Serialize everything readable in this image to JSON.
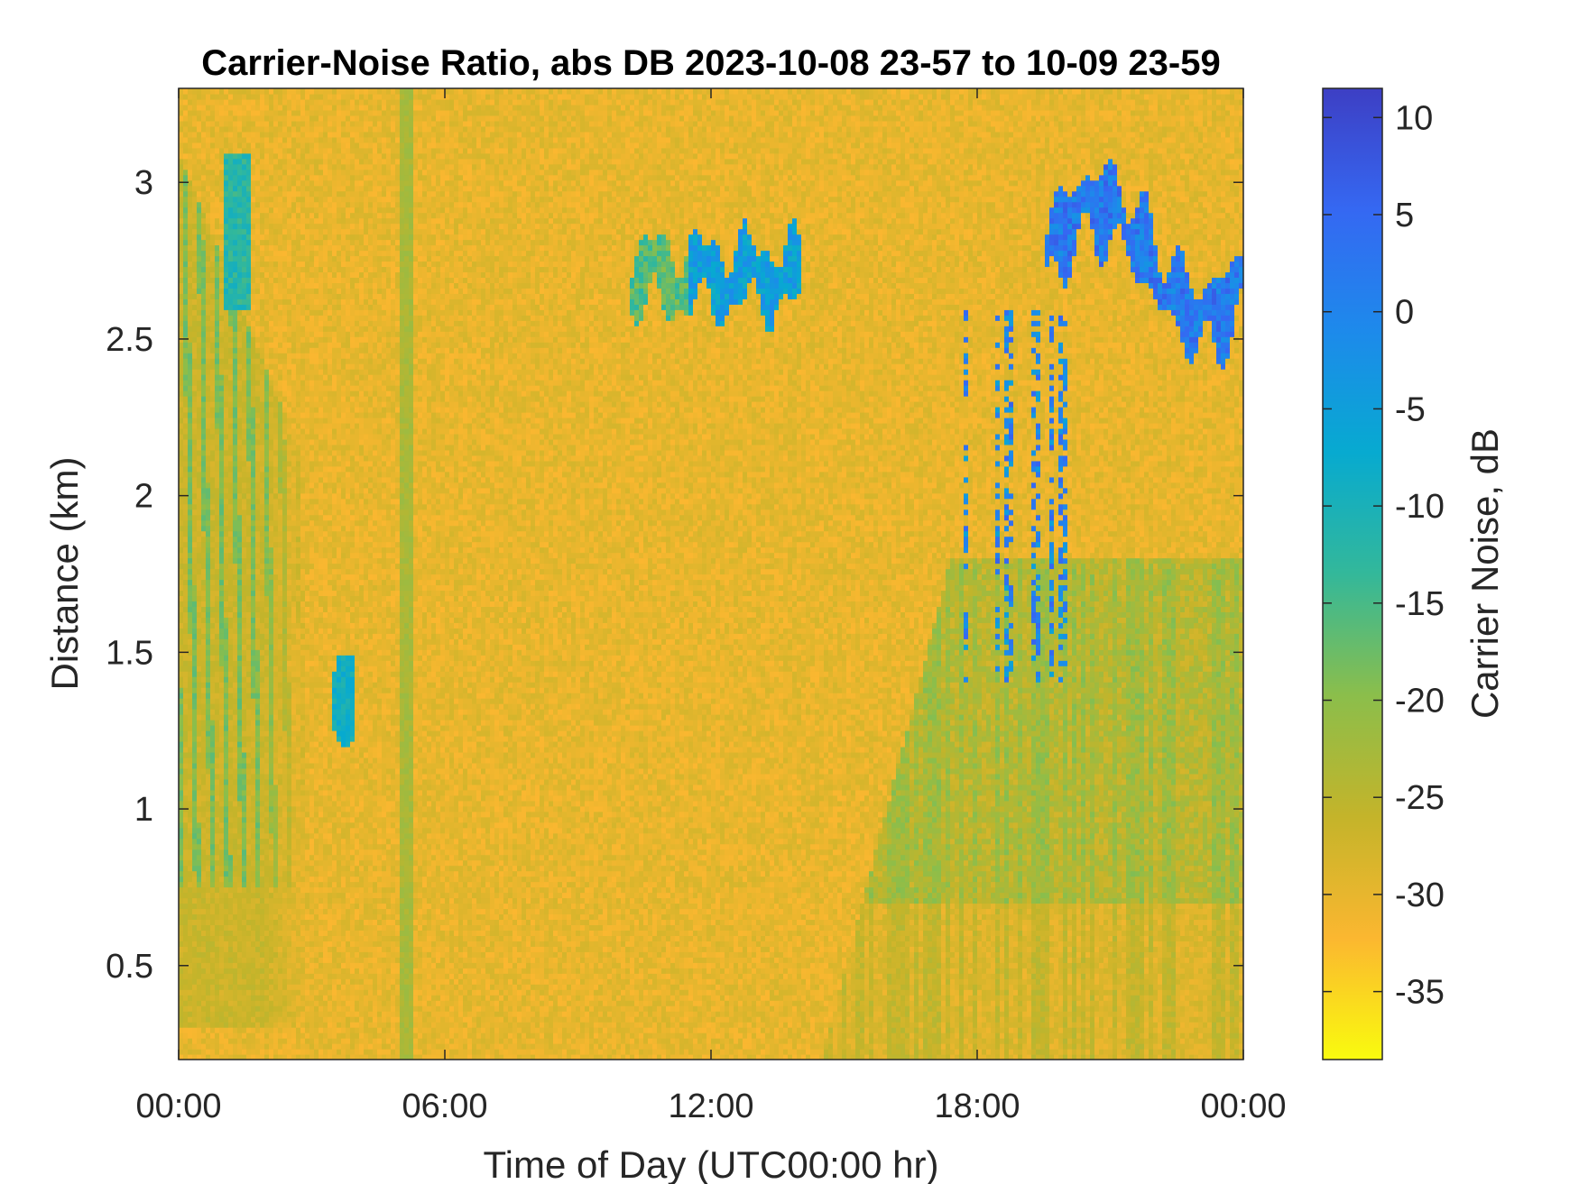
{
  "chart_data": {
    "type": "heatmap",
    "title": "Carrier-Noise Ratio, abs DB 2023-10-08 23-57 to 10-09 23-59",
    "xlabel": "Time of Day (UTC00:00 hr)",
    "ylabel": "Distance (km)",
    "colorbar_label": "Carrier Noise, dB",
    "x_unit": "hours since 00:00",
    "xlim": [
      0,
      24
    ],
    "ylim": [
      0.2,
      3.3
    ],
    "clim": [
      -38.5,
      11.5
    ],
    "x_ticks": [
      {
        "value": 0,
        "label": "00:00"
      },
      {
        "value": 6,
        "label": "06:00"
      },
      {
        "value": 12,
        "label": "12:00"
      },
      {
        "value": 18,
        "label": "18:00"
      },
      {
        "value": 24,
        "label": "00:00"
      }
    ],
    "y_ticks": [
      {
        "value": 0.5,
        "label": "0.5"
      },
      {
        "value": 1.0,
        "label": "1"
      },
      {
        "value": 1.5,
        "label": "1.5"
      },
      {
        "value": 2.0,
        "label": "2"
      },
      {
        "value": 2.5,
        "label": "2.5"
      },
      {
        "value": 3.0,
        "label": "3"
      }
    ],
    "colorbar_ticks": [
      {
        "value": 10,
        "label": "10"
      },
      {
        "value": 5,
        "label": "5"
      },
      {
        "value": 0,
        "label": "0"
      },
      {
        "value": -5,
        "label": "-5"
      },
      {
        "value": -10,
        "label": "-10"
      },
      {
        "value": -15,
        "label": "-15"
      },
      {
        "value": -20,
        "label": "-20"
      },
      {
        "value": -25,
        "label": "-25"
      },
      {
        "value": -30,
        "label": "-30"
      },
      {
        "value": -35,
        "label": "-35"
      }
    ],
    "colormap": "parula-reversed",
    "colormap_stops": [
      "#f9fb0e",
      "#fbb730",
      "#c4b42a",
      "#8bbe4b",
      "#33b89a",
      "#07aad0",
      "#1d8aeb",
      "#3568f2",
      "#3d3fc4"
    ],
    "background_level_db": -30,
    "features": [
      {
        "name": "early-morning-plume",
        "t_start": 0.0,
        "t_end": 2.9,
        "d_min": 0.6,
        "d_max": 3.1,
        "level_db": -16
      },
      {
        "name": "thin-streak-0515",
        "t_start": 5.0,
        "t_end": 5.3,
        "d_min": 0.2,
        "d_max": 3.3,
        "level_db": -24
      },
      {
        "name": "patch-0345",
        "t_start": 3.5,
        "t_end": 4.0,
        "d_min": 1.2,
        "d_max": 1.5,
        "level_db": -9
      },
      {
        "name": "midday-layer",
        "t_start": 10.2,
        "t_end": 14.0,
        "d_min": 2.5,
        "d_max": 2.85,
        "level_db": -5
      },
      {
        "name": "evening-boundary-layer",
        "t_start": 14.5,
        "t_end": 24.0,
        "d_min": 0.2,
        "d_max": 1.8,
        "level_db": -22
      },
      {
        "name": "evening-cloud-layer",
        "t_start": 19.5,
        "t_end": 24.0,
        "d_min": 2.5,
        "d_max": 3.05,
        "level_db": 2
      },
      {
        "name": "evening-streaks",
        "t_start": 17.3,
        "t_end": 20.3,
        "d_min": 1.4,
        "d_max": 2.6,
        "level_db": 6
      }
    ]
  }
}
